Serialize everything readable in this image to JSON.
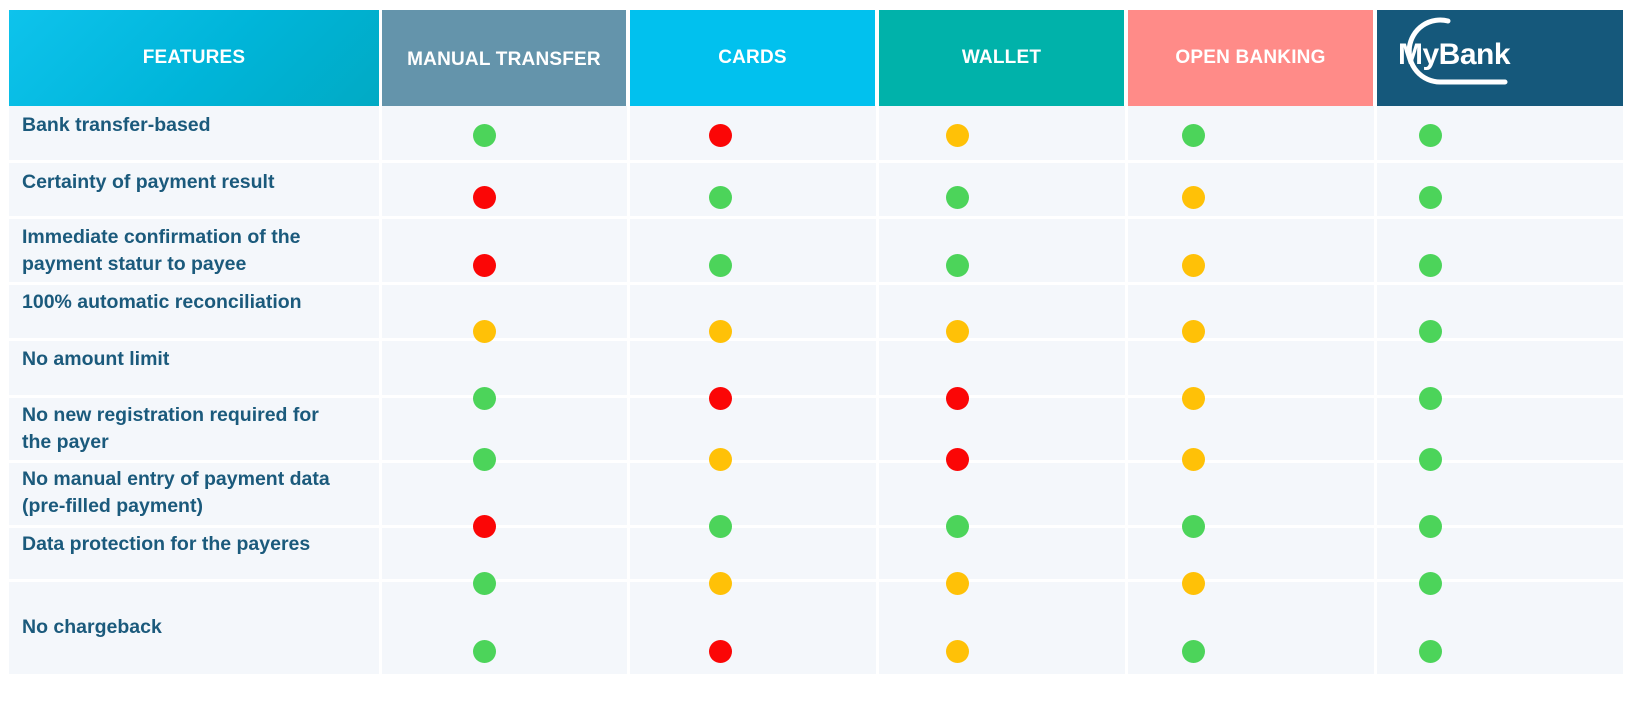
{
  "colors": {
    "green": "#4cd45a",
    "red": "#fb0606",
    "amber": "#ffc107",
    "label_text": "#1b5a7c",
    "features_header": "#0ec3ec",
    "manual_header": "#6494ab",
    "cards_header": "#01c1ee",
    "wallet_header": "#00b2aa",
    "open_banking_header": "#ff8b88",
    "mybank_header": "#15587b"
  },
  "headers": {
    "features": "FEATURES",
    "manual_transfer": "MANUAL TRANSFER",
    "cards": "CARDS",
    "wallet": "WALLET",
    "open_banking": "OPEN BANKING",
    "mybank_logo_text": "MyBank",
    "mybank_logo_icon": "mybank-logo-icon"
  },
  "rows": [
    {
      "lines": [
        "Bank transfer-based"
      ],
      "status": [
        "green",
        "red",
        "amber",
        "green",
        "green"
      ]
    },
    {
      "lines": [
        "Certainty of payment result"
      ],
      "status": [
        "red",
        "green",
        "green",
        "amber",
        "green"
      ]
    },
    {
      "lines": [
        "Immediate confirmation of the",
        "payment statur to payee"
      ],
      "status": [
        "red",
        "green",
        "green",
        "amber",
        "green"
      ]
    },
    {
      "lines": [
        "100% automatic reconciliation"
      ],
      "status": [
        "amber",
        "amber",
        "amber",
        "amber",
        "green"
      ]
    },
    {
      "lines": [
        "No amount limit"
      ],
      "status": [
        "green",
        "red",
        "red",
        "amber",
        "green"
      ]
    },
    {
      "lines": [
        "No new registration required for",
        "the payer"
      ],
      "status": [
        "green",
        "amber",
        "red",
        "amber",
        "green"
      ]
    },
    {
      "lines": [
        "No manual entry of payment data",
        "(pre-filled payment)"
      ],
      "status": [
        "red",
        "green",
        "green",
        "green",
        "green"
      ]
    },
    {
      "lines": [
        "Data protection for the payeres"
      ],
      "status": [
        "green",
        "amber",
        "amber",
        "amber",
        "green"
      ]
    },
    {
      "lines": [
        "No chargeback"
      ],
      "status": [
        "green",
        "red",
        "amber",
        "green",
        "green"
      ]
    }
  ]
}
